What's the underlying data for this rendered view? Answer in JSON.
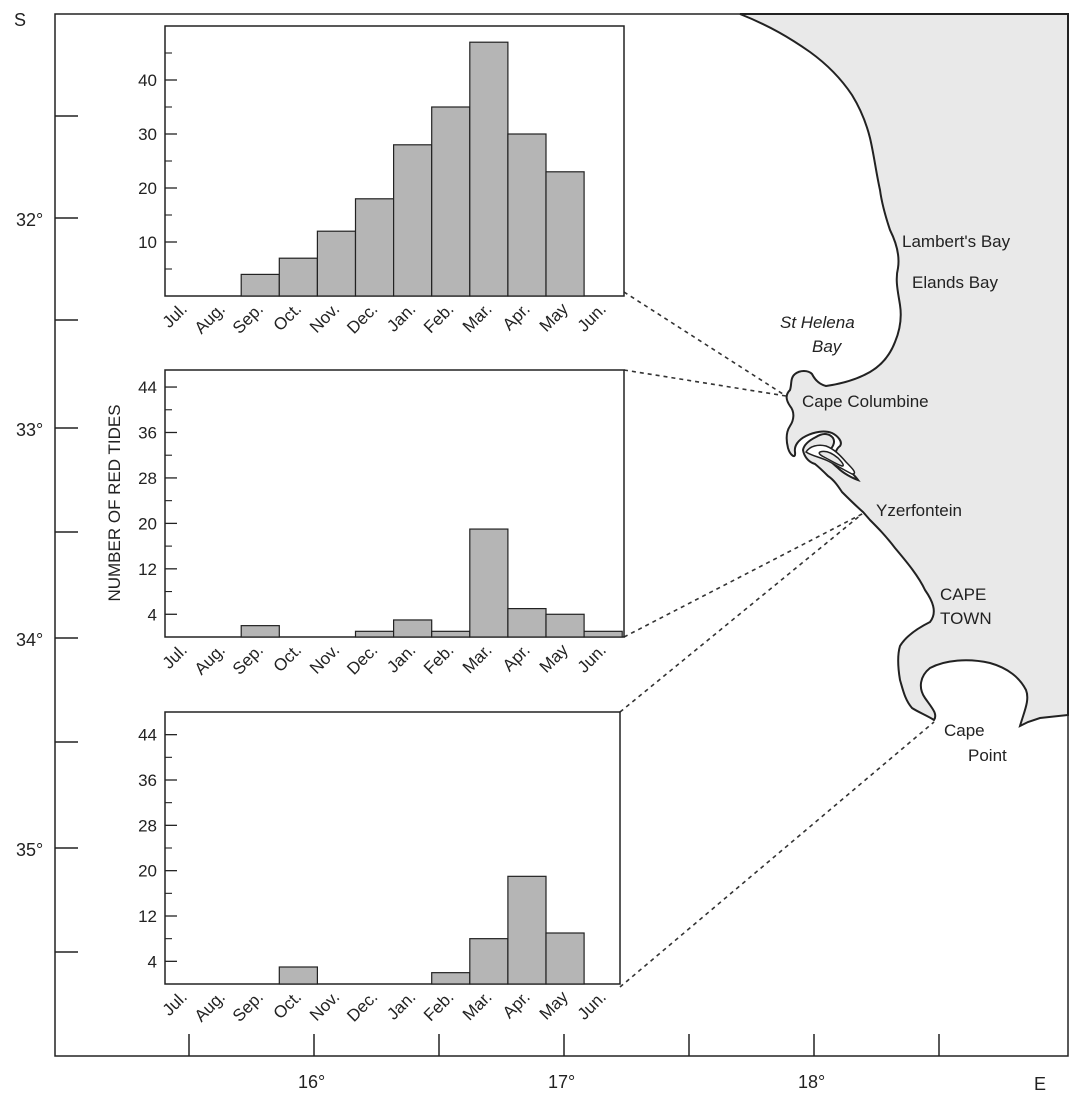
{
  "map": {
    "corner_south": "S",
    "corner_east": "E",
    "lat_labels": [
      "32°",
      "33°",
      "34°",
      "35°"
    ],
    "lon_labels": [
      "16°",
      "17°",
      "18°"
    ],
    "land_color": "#e9e9e9",
    "places": {
      "lamberts_bay": "Lambert's Bay",
      "elands_bay": "Elands Bay",
      "st_helena_1": "St Helena",
      "st_helena_2": "Bay",
      "cape_columbine": "Cape Columbine",
      "yzerfontein": "Yzerfontein",
      "cape_town_1": "CAPE",
      "cape_town_2": "TOWN",
      "cape_point_1": "Cape",
      "cape_point_2": "Point"
    }
  },
  "chart_data": [
    {
      "type": "bar",
      "location": "Lambert's Bay",
      "categories": [
        "Jul.",
        "Aug.",
        "Sep.",
        "Oct.",
        "Nov.",
        "Dec.",
        "Jan.",
        "Feb.",
        "Mar.",
        "Apr.",
        "May",
        "Jun."
      ],
      "values": [
        0,
        0,
        4,
        7,
        12,
        18,
        28,
        35,
        47,
        30,
        23,
        0
      ],
      "ylim": [
        0,
        50
      ],
      "yticks": [
        10,
        20,
        30,
        40
      ],
      "ylabel": "",
      "bar_color": "#b5b5b5"
    },
    {
      "type": "bar",
      "location": "Cape Columbine to Yzerfontein",
      "categories": [
        "Jul.",
        "Aug.",
        "Sep.",
        "Oct.",
        "Nov.",
        "Dec.",
        "Jan.",
        "Feb.",
        "Mar.",
        "Apr.",
        "May",
        "Jun."
      ],
      "values": [
        0,
        0,
        2,
        0,
        0,
        1,
        3,
        1,
        19,
        5,
        4,
        1
      ],
      "ylim": [
        0,
        47
      ],
      "yticks": [
        4,
        12,
        20,
        28,
        36,
        44
      ],
      "ylabel": "NUMBER OF RED TIDES",
      "bar_color": "#b5b5b5"
    },
    {
      "type": "bar",
      "location": "Yzerfontein to Cape Point",
      "categories": [
        "Jul.",
        "Aug.",
        "Sep.",
        "Oct.",
        "Nov.",
        "Dec.",
        "Jan.",
        "Feb.",
        "Mar.",
        "Apr.",
        "May",
        "Jun."
      ],
      "values": [
        0,
        0,
        0,
        3,
        0,
        0,
        0,
        2,
        8,
        19,
        9,
        0
      ],
      "ylim": [
        0,
        48
      ],
      "yticks": [
        4,
        12,
        20,
        28,
        36,
        44
      ],
      "ylabel": "",
      "bar_color": "#b5b5b5"
    }
  ]
}
